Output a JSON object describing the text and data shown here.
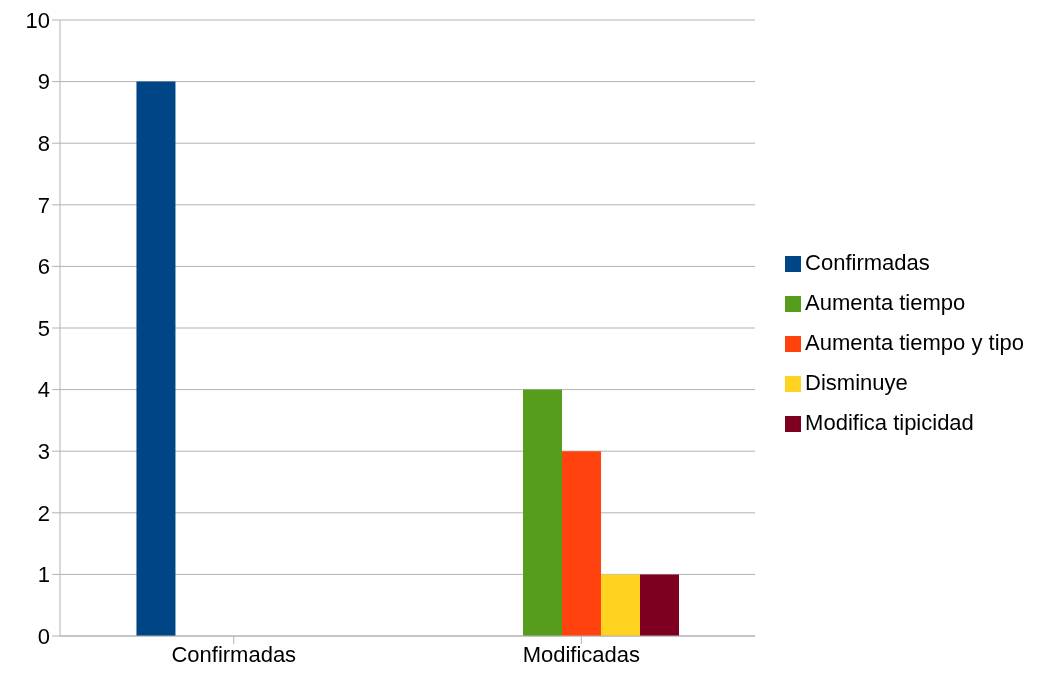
{
  "chart_data": {
    "type": "bar",
    "categories": [
      "Confirmadas",
      "Modificadas"
    ],
    "series": [
      {
        "name": "Confirmadas",
        "color": "#004586",
        "values": [
          9,
          null
        ]
      },
      {
        "name": "Aumenta tiempo",
        "color": "#579d1c",
        "values": [
          null,
          4
        ]
      },
      {
        "name": "Aumenta tiempo y tipo",
        "color": "#ff420e",
        "values": [
          null,
          3
        ]
      },
      {
        "name": "Disminuye",
        "color": "#ffd320",
        "values": [
          null,
          1
        ]
      },
      {
        "name": "Modifica tipicidad",
        "color": "#7e0021",
        "values": [
          null,
          1
        ]
      }
    ],
    "ylim": [
      0,
      10
    ],
    "yticks": [
      0,
      1,
      2,
      3,
      4,
      5,
      6,
      7,
      8,
      9,
      10
    ],
    "grid": "y",
    "legend": "right"
  }
}
